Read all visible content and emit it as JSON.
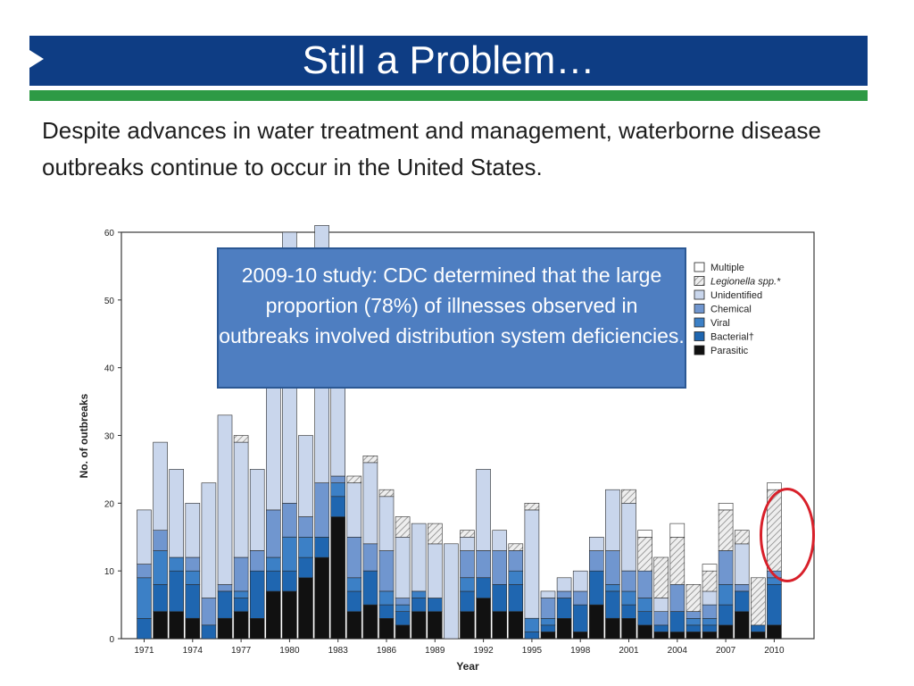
{
  "slide": {
    "title": "Still a Problem…",
    "body": "Despite advances in water treatment and management, waterborne disease outbreaks continue to occur in the United States.",
    "callout": "2009-10 study: CDC determined that the large proportion (78%) of illnesses observed in outbreaks involved distribution system deficiencies."
  },
  "colors": {
    "title_bar": "#0e3d84",
    "accent_green": "#2e9a45",
    "callout": "#4e7ec1",
    "highlight_circle": "#d8202a"
  },
  "chart_data": {
    "type": "bar",
    "stacked": true,
    "xlabel": "Year",
    "ylabel": "No. of outbreaks",
    "ylim": [
      0,
      60
    ],
    "yticks": [
      0,
      10,
      20,
      30,
      40,
      50,
      60
    ],
    "xticks": [
      "1971",
      "1974",
      "1977",
      "1980",
      "1983",
      "1986",
      "1989",
      "1992",
      "1995",
      "1998",
      "2001",
      "2004",
      "2007",
      "2010"
    ],
    "categories": [
      "1971",
      "1972",
      "1973",
      "1974",
      "1975",
      "1976",
      "1977",
      "1978",
      "1979",
      "1980",
      "1981",
      "1982",
      "1983",
      "1984",
      "1985",
      "1986",
      "1987",
      "1988",
      "1989",
      "1990",
      "1991",
      "1992",
      "1993",
      "1994",
      "1995",
      "1996",
      "1997",
      "1998",
      "1999",
      "2000",
      "2001",
      "2002",
      "2003",
      "2004",
      "2005",
      "2006",
      "2007",
      "2008",
      "2009",
      "2010"
    ],
    "series": [
      {
        "name": "Parasitic",
        "color": "#111111",
        "values": [
          0,
          4,
          4,
          3,
          0,
          3,
          4,
          3,
          7,
          7,
          9,
          12,
          18,
          4,
          5,
          3,
          2,
          4,
          4,
          0,
          4,
          6,
          4,
          4,
          0,
          1,
          3,
          1,
          5,
          3,
          3,
          2,
          1,
          1,
          1,
          1,
          2,
          4,
          1,
          2
        ]
      },
      {
        "name": "Bacterial†",
        "color": "#1f66b0",
        "values": [
          3,
          4,
          6,
          5,
          2,
          4,
          2,
          7,
          3,
          3,
          3,
          3,
          3,
          3,
          5,
          2,
          2,
          2,
          2,
          0,
          3,
          3,
          4,
          4,
          1,
          1,
          3,
          4,
          5,
          4,
          2,
          2,
          1,
          3,
          1,
          1,
          3,
          3,
          1,
          6
        ]
      },
      {
        "name": "Viral",
        "color": "#3c80c6",
        "values": [
          6,
          5,
          2,
          2,
          0,
          0,
          1,
          0,
          2,
          5,
          3,
          0,
          2,
          2,
          0,
          2,
          1,
          1,
          0,
          0,
          2,
          0,
          0,
          2,
          2,
          1,
          0,
          0,
          0,
          1,
          2,
          2,
          0,
          0,
          1,
          1,
          3,
          0,
          0,
          1
        ]
      },
      {
        "name": "Chemical",
        "color": "#7096cf",
        "values": [
          2,
          3,
          0,
          2,
          4,
          1,
          5,
          3,
          7,
          5,
          3,
          8,
          1,
          6,
          4,
          6,
          1,
          0,
          0,
          0,
          4,
          4,
          5,
          3,
          0,
          3,
          1,
          2,
          3,
          5,
          3,
          4,
          2,
          4,
          1,
          2,
          5,
          1,
          0,
          1
        ]
      },
      {
        "name": "Unidentified",
        "color": "#c9d6ec",
        "values": [
          8,
          13,
          13,
          8,
          17,
          25,
          17,
          12,
          37,
          40,
          12,
          38,
          26,
          8,
          12,
          8,
          9,
          10,
          8,
          14,
          2,
          12,
          3,
          0,
          16,
          1,
          2,
          3,
          2,
          9,
          10,
          0,
          2,
          0,
          0,
          2,
          0,
          6,
          0,
          0
        ]
      },
      {
        "name": "Legionella spp.*",
        "color": "#eaeaea",
        "hatched": true,
        "values": [
          0,
          0,
          0,
          0,
          0,
          0,
          1,
          0,
          0,
          0,
          0,
          0,
          0,
          1,
          1,
          1,
          3,
          0,
          3,
          0,
          1,
          0,
          0,
          1,
          1,
          0,
          0,
          0,
          0,
          0,
          2,
          5,
          6,
          7,
          4,
          3,
          6,
          2,
          7,
          12
        ]
      },
      {
        "name": "Multiple",
        "color": "#ffffff",
        "values": [
          0,
          0,
          0,
          0,
          0,
          0,
          0,
          0,
          0,
          0,
          0,
          0,
          0,
          0,
          0,
          0,
          0,
          0,
          0,
          0,
          0,
          0,
          0,
          0,
          0,
          0,
          0,
          0,
          0,
          0,
          0,
          1,
          0,
          2,
          0,
          1,
          1,
          0,
          0,
          1
        ]
      }
    ],
    "legend_position": "top-right",
    "grid": false,
    "annotation": "red circle highlighting 2010"
  }
}
